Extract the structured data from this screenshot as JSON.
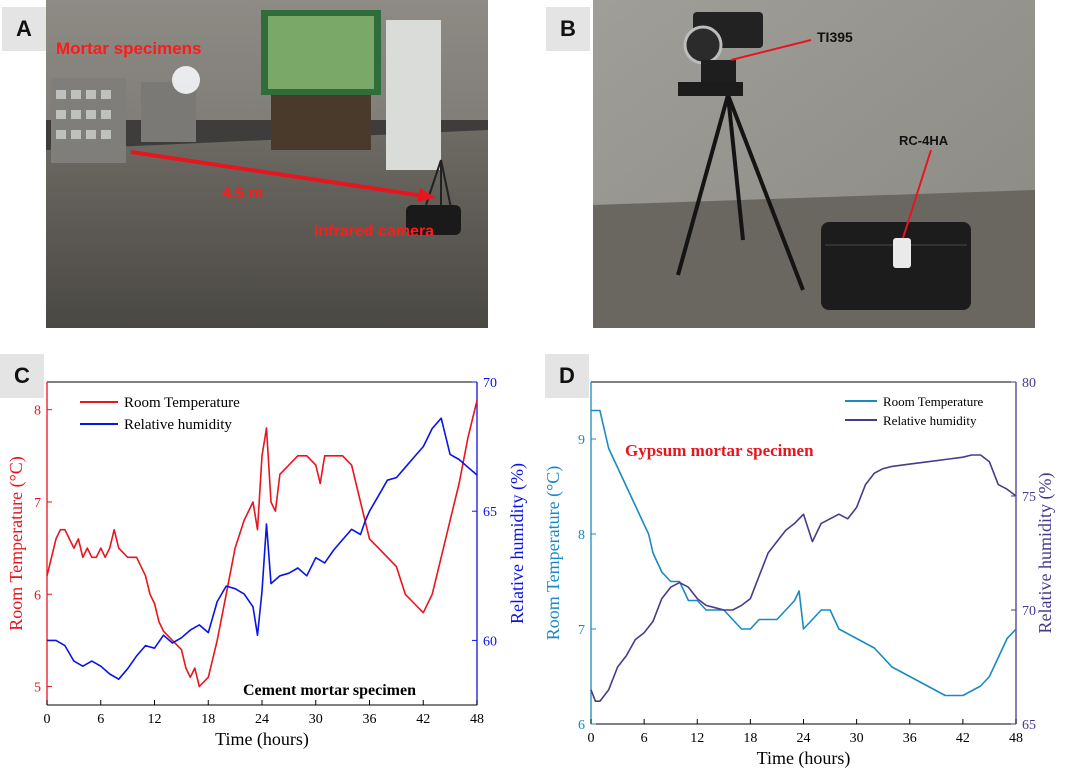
{
  "panels": {
    "a": {
      "tag": "A",
      "label_specimens": "Mortar specimens",
      "label_distance": "4.5 m",
      "label_camera": "Infrared camera",
      "colors": {
        "label": "#ff1a1a",
        "arrow": "#e8141e"
      }
    },
    "b": {
      "tag": "B",
      "label_camera_model": "TI395",
      "label_logger_model": "RC-4HA",
      "colors": {
        "label": "#111111",
        "leader": "#e8141e"
      }
    },
    "c": {
      "tag": "C"
    },
    "d": {
      "tag": "D"
    }
  },
  "chart_data": [
    {
      "type": "line",
      "panel": "C",
      "annotation": "Cement mortar specimen",
      "xlabel": "Time (hours)",
      "ylabel_left": "Room Temperature (°C)",
      "ylabel_right": "Relative humidity (%)",
      "xlim": [
        0,
        48
      ],
      "ylim_left": [
        4.8,
        8.3
      ],
      "ylim_right": [
        57.5,
        70
      ],
      "xticks": [
        "0",
        "6",
        "12",
        "18",
        "24",
        "30",
        "36",
        "42",
        "48"
      ],
      "yticks_left": [
        "5",
        "6",
        "7",
        "8"
      ],
      "yticks_right": [
        "60",
        "65",
        "70"
      ],
      "legend_position": "top-left",
      "series": [
        {
          "name": "Room Temperature",
          "axis": "left",
          "color": "#e8141e",
          "x": [
            0,
            0.5,
            1,
            1.5,
            2,
            3,
            3.5,
            4,
            4.5,
            5,
            5.5,
            6,
            6.5,
            7,
            7.5,
            8,
            9,
            10,
            11,
            11.5,
            12,
            12.5,
            13,
            14,
            15,
            15.5,
            16,
            16.5,
            17,
            18,
            19,
            20,
            21,
            22,
            23,
            23.5,
            24,
            24.5,
            25,
            25.5,
            26,
            27,
            28,
            29,
            30,
            30.5,
            31,
            32,
            33,
            34,
            35,
            36,
            37,
            38,
            39,
            40,
            41,
            42,
            43,
            44,
            45,
            46,
            47,
            48
          ],
          "y": [
            6.2,
            6.4,
            6.6,
            6.7,
            6.7,
            6.5,
            6.6,
            6.4,
            6.5,
            6.4,
            6.4,
            6.5,
            6.4,
            6.5,
            6.7,
            6.5,
            6.4,
            6.4,
            6.2,
            6.0,
            5.9,
            5.7,
            5.6,
            5.5,
            5.4,
            5.2,
            5.1,
            5.2,
            5.0,
            5.1,
            5.5,
            6.0,
            6.5,
            6.8,
            7.0,
            6.7,
            7.5,
            7.8,
            7.0,
            6.9,
            7.3,
            7.4,
            7.5,
            7.5,
            7.4,
            7.2,
            7.5,
            7.5,
            7.5,
            7.4,
            7.0,
            6.6,
            6.5,
            6.4,
            6.3,
            6.0,
            5.9,
            5.8,
            6.0,
            6.4,
            6.8,
            7.2,
            7.7,
            8.1
          ]
        },
        {
          "name": "Relative humidity",
          "axis": "right",
          "color": "#0a14e6",
          "x": [
            0,
            1,
            2,
            3,
            4,
            5,
            6,
            7,
            8,
            9,
            10,
            11,
            12,
            13,
            14,
            15,
            16,
            17,
            18,
            19,
            20,
            21,
            22,
            23,
            23.5,
            24,
            24.5,
            25,
            26,
            27,
            28,
            29,
            30,
            31,
            32,
            33,
            34,
            35,
            35.5,
            36,
            37,
            38,
            39,
            40,
            41,
            42,
            43,
            44,
            45,
            46,
            47,
            48
          ],
          "y": [
            60.0,
            60.0,
            59.8,
            59.2,
            59.0,
            59.2,
            59.0,
            58.7,
            58.5,
            58.9,
            59.4,
            59.8,
            59.7,
            60.2,
            59.9,
            60.1,
            60.4,
            60.6,
            60.3,
            61.5,
            62.1,
            62.0,
            61.8,
            61.3,
            60.2,
            61.9,
            64.5,
            62.2,
            62.5,
            62.6,
            62.8,
            62.5,
            63.2,
            63.0,
            63.5,
            63.9,
            64.3,
            64.1,
            64.6,
            65.0,
            65.6,
            66.2,
            66.3,
            66.7,
            67.1,
            67.5,
            68.2,
            68.6,
            67.2,
            67.0,
            66.7,
            66.4
          ]
        }
      ]
    },
    {
      "type": "line",
      "panel": "D",
      "annotation": "Gypsum mortar specimen",
      "xlabel": "Time (hours)",
      "ylabel_left": "Room Temperature (°C)",
      "ylabel_right": "Relative humidity (%)",
      "xlim": [
        0,
        48
      ],
      "ylim_left": [
        6,
        9.6
      ],
      "ylim_right": [
        65,
        80
      ],
      "xticks": [
        "0",
        "6",
        "12",
        "18",
        "24",
        "30",
        "36",
        "42",
        "48"
      ],
      "yticks_left": [
        "6",
        "7",
        "8",
        "9"
      ],
      "yticks_right": [
        "65",
        "70",
        "75",
        "80"
      ],
      "legend_position": "top-right",
      "series": [
        {
          "name": "Room Temperature",
          "axis": "left",
          "color": "#1a8ac4",
          "x": [
            0,
            1,
            1.5,
            2,
            3,
            4,
            5,
            6,
            6.5,
            7,
            8,
            9,
            10,
            11,
            12,
            13,
            14,
            15,
            16,
            17,
            18,
            19,
            20,
            21,
            22,
            23,
            23.5,
            24,
            25,
            26,
            27,
            28,
            30,
            32,
            34,
            36,
            38,
            40,
            42,
            44,
            45,
            46,
            47,
            48
          ],
          "y": [
            9.3,
            9.3,
            9.1,
            8.9,
            8.7,
            8.5,
            8.3,
            8.1,
            8.0,
            7.8,
            7.6,
            7.5,
            7.5,
            7.3,
            7.3,
            7.2,
            7.2,
            7.2,
            7.1,
            7.0,
            7.0,
            7.1,
            7.1,
            7.1,
            7.2,
            7.3,
            7.4,
            7.0,
            7.1,
            7.2,
            7.2,
            7.0,
            6.9,
            6.8,
            6.6,
            6.5,
            6.4,
            6.3,
            6.3,
            6.4,
            6.5,
            6.7,
            6.9,
            7.0
          ]
        },
        {
          "name": "Relative humidity",
          "axis": "right",
          "color": "#4a3a8c",
          "x": [
            0,
            0.5,
            1,
            2,
            3,
            4,
            5,
            6,
            7,
            8,
            9,
            10,
            11,
            12,
            13,
            14,
            15,
            16,
            17,
            18,
            19,
            20,
            21,
            22,
            23,
            24,
            25,
            26,
            27,
            28,
            29,
            30,
            31,
            32,
            33,
            34,
            36,
            38,
            40,
            42,
            43,
            44,
            45,
            46,
            47,
            48
          ],
          "y": [
            66.5,
            66.0,
            66.0,
            66.5,
            67.5,
            68.0,
            68.7,
            69.0,
            69.5,
            70.5,
            71.0,
            71.2,
            71.0,
            70.5,
            70.2,
            70.1,
            70.0,
            70.0,
            70.2,
            70.5,
            71.5,
            72.5,
            73.0,
            73.5,
            73.8,
            74.2,
            73.0,
            73.8,
            74.0,
            74.2,
            74.0,
            74.5,
            75.5,
            76.0,
            76.2,
            76.3,
            76.4,
            76.5,
            76.6,
            76.7,
            76.8,
            76.8,
            76.5,
            75.5,
            75.3,
            75.0
          ]
        }
      ]
    }
  ]
}
